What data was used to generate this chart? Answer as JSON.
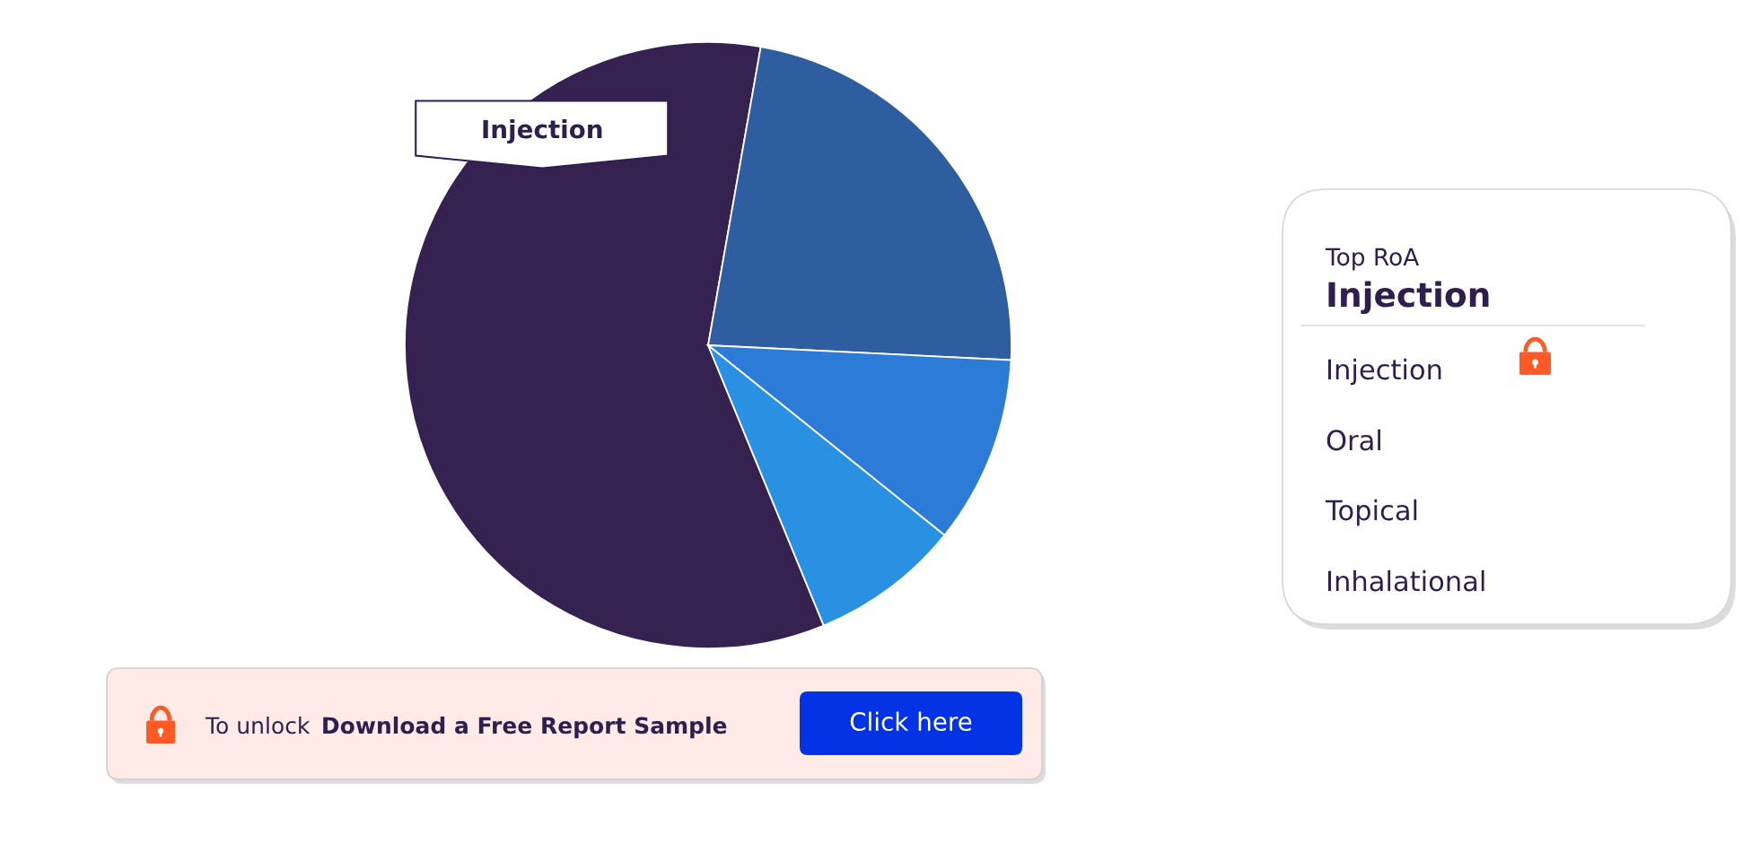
{
  "chart_data": {
    "type": "pie",
    "categories": [
      "Injection",
      null,
      null,
      null
    ],
    "values": [
      59,
      23,
      10,
      8
    ],
    "colors": [
      "#352250",
      "#2f5ea0",
      "#2c7bd6",
      "#2a90e2"
    ],
    "annotations": [
      "Top RoA",
      "Injection",
      "Injection",
      "Oral",
      "Topical",
      "Inhalational",
      "To unlock",
      "Download a Free Report Sample",
      "Click here"
    ]
  }
}
